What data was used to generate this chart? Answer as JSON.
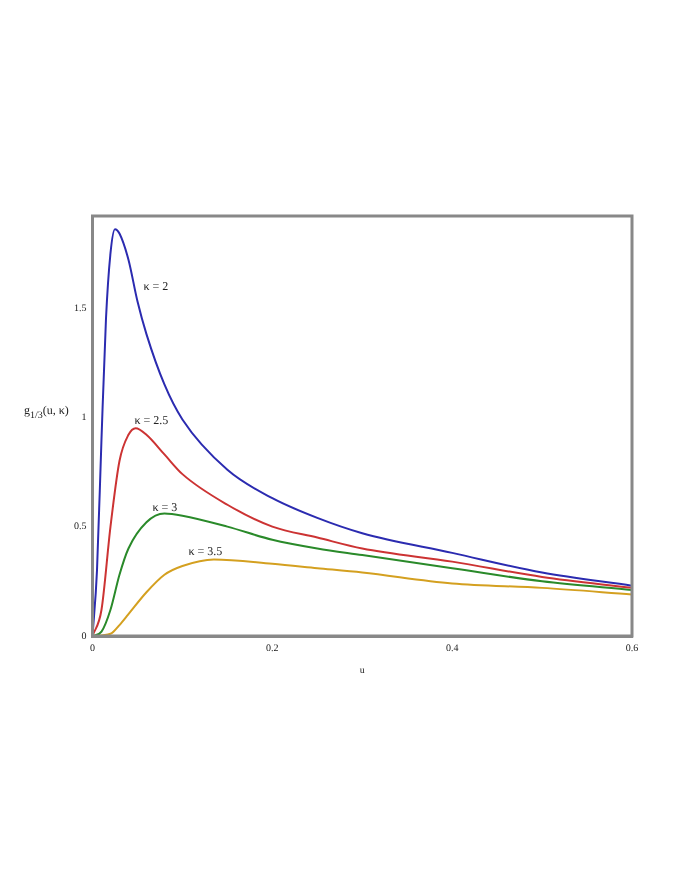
{
  "chart_data": {
    "type": "line",
    "xlabel": "u",
    "ylabel": "g$_{1/3}$(u, κ)",
    "xlim": [
      0,
      0.6
    ],
    "xticks": [
      0,
      0.2,
      0.4,
      0.6
    ],
    "ylim": [
      0,
      1.92
    ],
    "yticks": [
      0,
      0.5,
      1,
      1.5
    ],
    "grid": false,
    "legend": false,
    "series": [
      {
        "color": "#2b2bb0",
        "x": [
          0,
          0.005,
          0.01,
          0.015,
          0.02,
          0.025,
          0.03,
          0.04,
          0.05,
          0.06,
          0.08,
          0.1,
          0.15,
          0.2,
          0.25,
          0.3,
          0.4,
          0.5,
          0.6
        ],
        "values": [
          0,
          0.3,
          0.9,
          1.45,
          1.75,
          1.86,
          1.84,
          1.72,
          1.53,
          1.38,
          1.15,
          0.99,
          0.76,
          0.63,
          0.54,
          0.47,
          0.38,
          0.29,
          0.23
        ]
      },
      {
        "color": "#cc3333",
        "x": [
          0,
          0.01,
          0.02,
          0.03,
          0.04,
          0.048,
          0.06,
          0.08,
          0.1,
          0.15,
          0.2,
          0.25,
          0.3,
          0.4,
          0.5,
          0.6
        ],
        "values": [
          0,
          0.12,
          0.5,
          0.8,
          0.92,
          0.95,
          0.92,
          0.83,
          0.74,
          0.6,
          0.5,
          0.45,
          0.4,
          0.34,
          0.27,
          0.22
        ]
      },
      {
        "color": "#2a8a2a",
        "x": [
          0,
          0.01,
          0.02,
          0.03,
          0.04,
          0.06,
          0.08,
          0.1,
          0.15,
          0.2,
          0.25,
          0.3,
          0.4,
          0.5,
          0.6
        ],
        "values": [
          0,
          0.02,
          0.12,
          0.28,
          0.4,
          0.52,
          0.56,
          0.55,
          0.5,
          0.44,
          0.4,
          0.37,
          0.31,
          0.25,
          0.21
        ]
      },
      {
        "color": "#d4a020",
        "x": [
          0,
          0.02,
          0.03,
          0.04,
          0.06,
          0.08,
          0.1,
          0.135,
          0.2,
          0.25,
          0.3,
          0.4,
          0.5,
          0.6
        ],
        "values": [
          0,
          0.01,
          0.05,
          0.1,
          0.2,
          0.28,
          0.32,
          0.35,
          0.33,
          0.31,
          0.29,
          0.24,
          0.22,
          0.19
        ]
      }
    ],
    "annotations": [
      {
        "text": "κ = 2",
        "x": 0.05,
        "y": 1.53
      },
      {
        "text": "κ = 2.5",
        "x": 0.04,
        "y": 0.92
      },
      {
        "text": "κ = 3",
        "x": 0.06,
        "y": 0.52
      },
      {
        "text": "κ = 3.5",
        "x": 0.1,
        "y": 0.32
      }
    ]
  }
}
